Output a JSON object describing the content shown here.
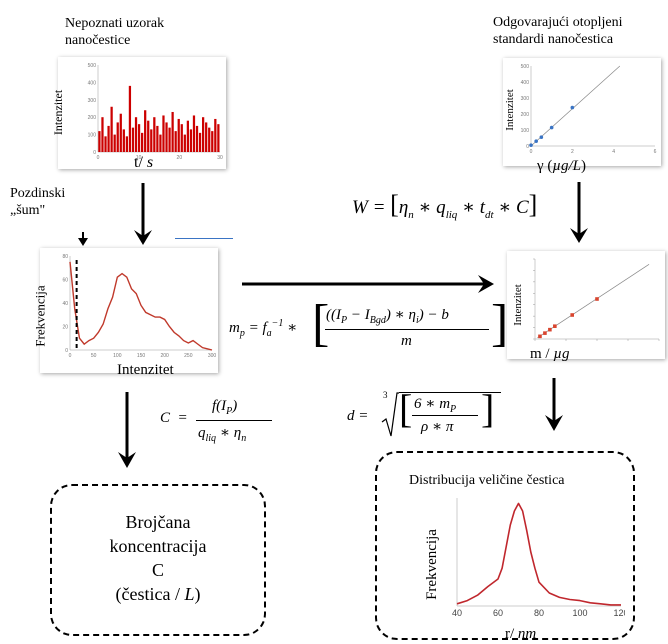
{
  "top_left_title": [
    "Nepoznati uzorak",
    "nanočestice"
  ],
  "top_right_title": [
    "Odgovarajući otopljeni",
    "standardi nanočestica"
  ],
  "background_label": [
    "Pozdinski",
    "„šum\""
  ],
  "panel1": {
    "ylabel": "Intenzitet",
    "xlabel": "t/ s",
    "yticks": [
      "500",
      "400",
      "300",
      "200",
      "100",
      "0"
    ],
    "xticks": [
      "0",
      "10",
      "20",
      "30"
    ],
    "bar_color": "#cc0000"
  },
  "panel2": {
    "ylabel": "Intenzitet",
    "xlabel": "γ (µg/L)",
    "yticks": [
      "500",
      "400",
      "300",
      "200",
      "100",
      "0"
    ],
    "xticks": [
      "0",
      "2",
      "4",
      "6"
    ],
    "point_color": "#3a74c4"
  },
  "panel3": {
    "ylabel": "Frekvencija",
    "xlabel": "Intenzitet",
    "yticks": [
      "80",
      "60",
      "40",
      "20",
      "0"
    ],
    "xticks": [
      "0",
      "50",
      "100",
      "150",
      "200",
      "250",
      "300"
    ],
    "line_color": "#c0392b"
  },
  "panel4": {
    "ylabel": "Intenzitet",
    "xlabel": "m / µg",
    "point_color": "#d9452f"
  },
  "panel5": {
    "ylabel": "Frekvencija",
    "xlabel": "r/ nm",
    "xticks": [
      "40",
      "60",
      "80",
      "100",
      "120"
    ],
    "line_color": "#c0272d"
  },
  "formulas": {
    "W": "W = [ηn * qliq * tdt * C]",
    "mp": "mp = fa⁻¹ * [((IP − IBgd) * ηi) − b] / m",
    "C": "C = f(IP) / (qliq * ηn)",
    "d": "d = ∛[(6 * mP)/(ρ * π)]"
  },
  "box_left": [
    "Brojčana",
    "koncentracija",
    "C",
    "(čestica / L)"
  ],
  "box_right_title": "Distribucija veličine čestica",
  "chart_data": [
    {
      "type": "bar",
      "title": "",
      "xlabel": "t/ s",
      "ylabel": "Intenzitet",
      "ylim": [
        0,
        500
      ],
      "xlim": [
        0,
        30
      ],
      "values": [
        120,
        200,
        90,
        150,
        260,
        100,
        170,
        220,
        130,
        90,
        380,
        140,
        200,
        160,
        110,
        240,
        180,
        130,
        200,
        150,
        100,
        210,
        170,
        140,
        230,
        120,
        190,
        160,
        100,
        180,
        130,
        210,
        150,
        110,
        200,
        170,
        140,
        120,
        190,
        160
      ]
    },
    {
      "type": "scatter",
      "title": "",
      "xlabel": "γ (µg/L)",
      "ylabel": "Intenzitet",
      "xlim": [
        0,
        6
      ],
      "ylim": [
        0,
        500
      ],
      "x": [
        0,
        0.25,
        0.5,
        1,
        2
      ],
      "y": [
        5,
        30,
        55,
        115,
        240
      ]
    },
    {
      "type": "line",
      "title": "",
      "xlabel": "Intenzitet",
      "ylabel": "Frekvencija",
      "xlim": [
        0,
        300
      ],
      "ylim": [
        0,
        80
      ],
      "x": [
        0,
        10,
        20,
        30,
        40,
        50,
        60,
        70,
        80,
        90,
        100,
        110,
        120,
        130,
        140,
        150,
        160,
        170,
        180,
        190,
        200,
        210,
        220,
        230,
        240,
        250,
        260,
        270,
        280,
        290,
        300
      ],
      "y": [
        75,
        35,
        10,
        5,
        8,
        10,
        15,
        22,
        35,
        45,
        62,
        65,
        62,
        52,
        48,
        38,
        32,
        30,
        28,
        28,
        26,
        20,
        15,
        12,
        8,
        6,
        8,
        5,
        2,
        1,
        0
      ]
    },
    {
      "type": "scatter",
      "title": "",
      "xlabel": "m / µg",
      "ylabel": "Intenzitet",
      "x": [
        0.2,
        0.4,
        0.6,
        0.8,
        1.5,
        2.5
      ],
      "y": [
        10,
        22,
        35,
        48,
        90,
        150
      ]
    },
    {
      "type": "line",
      "title": "",
      "xlabel": "r/ nm",
      "ylabel": "Frekvencija",
      "xlim": [
        40,
        120
      ],
      "x": [
        40,
        45,
        50,
        55,
        60,
        62,
        64,
        66,
        68,
        70,
        72,
        74,
        76,
        78,
        80,
        85,
        90,
        95,
        100,
        105,
        110,
        115,
        120
      ],
      "y": [
        2,
        5,
        10,
        18,
        25,
        35,
        55,
        75,
        88,
        95,
        88,
        70,
        50,
        35,
        22,
        12,
        8,
        6,
        5,
        3,
        2,
        1,
        1
      ]
    }
  ]
}
